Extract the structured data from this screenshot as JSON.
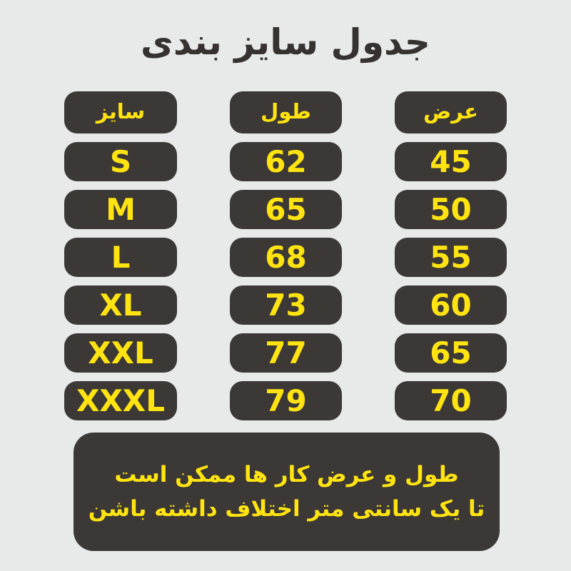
{
  "page": {
    "title": "جدول سایز بندی"
  },
  "table": {
    "header": {
      "size": "سایز",
      "length": "طول",
      "width": "عرض"
    },
    "rows": [
      {
        "size": "S",
        "length": "62",
        "width": "45"
      },
      {
        "size": "M",
        "length": "65",
        "width": "50"
      },
      {
        "size": "L",
        "length": "68",
        "width": "55"
      },
      {
        "size": "XL",
        "length": "73",
        "width": "60"
      },
      {
        "size": "XXL",
        "length": "77",
        "width": "65"
      },
      {
        "size": "XXXL",
        "length": "79",
        "width": "70"
      }
    ]
  },
  "note": {
    "line1": "طول و عرض کار ها ممکن است",
    "line2": "تا یک سانتی متر اختلاف داشته باشن"
  },
  "colors": {
    "background": "#e8e9e9",
    "pill_dark": "#3b3835",
    "text_yellow": "#ffe412",
    "title_text": "#35322f"
  },
  "chart_data": {
    "type": "table",
    "title": "جدول سایز بندی",
    "columns": [
      "سایز",
      "طول",
      "عرض"
    ],
    "rows": [
      [
        "S",
        62,
        45
      ],
      [
        "M",
        65,
        50
      ],
      [
        "L",
        68,
        55
      ],
      [
        "XL",
        73,
        60
      ],
      [
        "XXL",
        77,
        65
      ],
      [
        "XXXL",
        79,
        70
      ]
    ],
    "note": "طول و عرض کار ها ممکن است تا یک سانتی متر اختلاف داشته باشن",
    "layout": "three pill columns: size left, length middle, width right; footnote box at bottom"
  }
}
